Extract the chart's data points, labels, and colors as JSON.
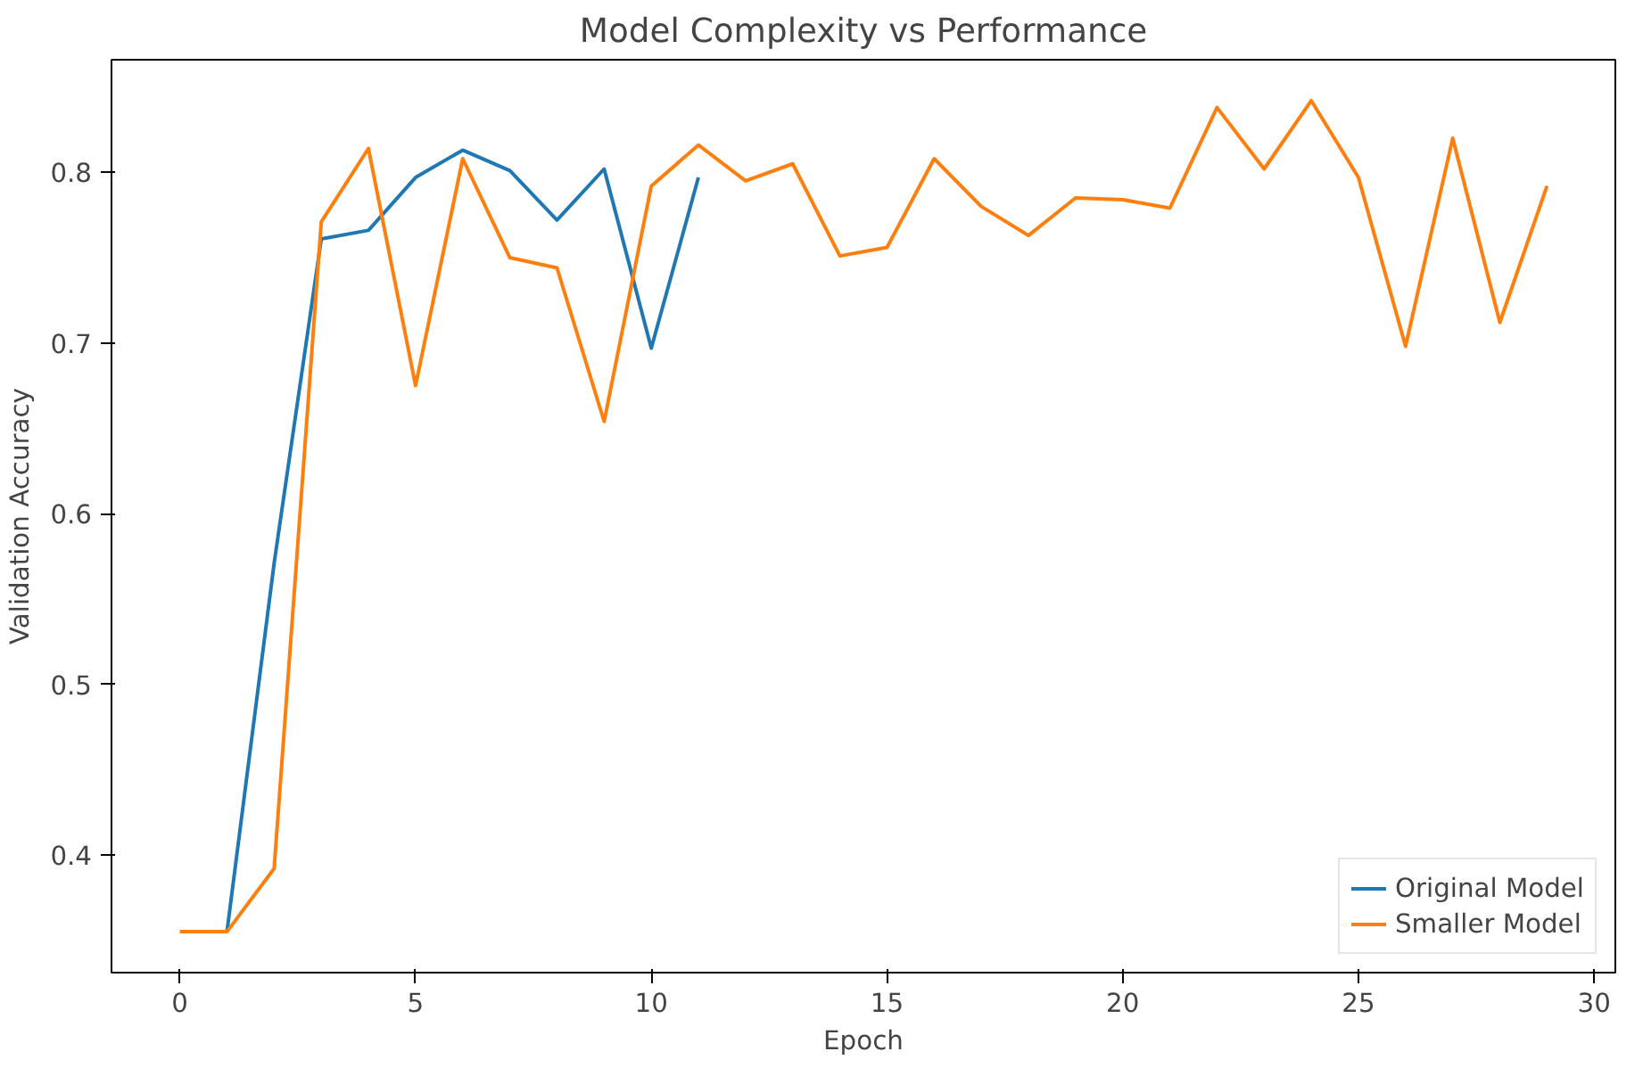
{
  "chart_data": {
    "type": "line",
    "title": "Model Complexity vs Performance",
    "xlabel": "Epoch",
    "ylabel": "Validation Accuracy",
    "xlim": [
      -1.45,
      30.45
    ],
    "ylim": [
      0.331,
      0.866
    ],
    "xticks": [
      0,
      5,
      10,
      15,
      20,
      25,
      30
    ],
    "yticks": [
      0.4,
      0.5,
      0.6,
      0.7,
      0.8
    ],
    "grid": false,
    "legend": "bottom right",
    "marker": "none",
    "line_style": "solid",
    "series": [
      {
        "name": "Original Model",
        "color": "#1f77b4",
        "x": [
          1,
          2,
          3,
          4,
          5,
          6,
          7,
          8,
          9,
          10,
          11
        ],
        "values": [
          0.355,
          0.571,
          0.761,
          0.766,
          0.797,
          0.813,
          0.801,
          0.772,
          0.802,
          0.697,
          0.797
        ]
      },
      {
        "name": "Smaller Model",
        "color": "#ff7f0e",
        "x": [
          0,
          1,
          2,
          3,
          4,
          5,
          6,
          7,
          8,
          9,
          10,
          11,
          12,
          13,
          14,
          15,
          16,
          17,
          18,
          19,
          20,
          21,
          22,
          23,
          24,
          25,
          26,
          27,
          28,
          29
        ],
        "values": [
          0.355,
          0.355,
          0.392,
          0.771,
          0.814,
          0.675,
          0.808,
          0.75,
          0.744,
          0.654,
          0.792,
          0.816,
          0.795,
          0.805,
          0.751,
          0.756,
          0.808,
          0.78,
          0.763,
          0.785,
          0.784,
          0.779,
          0.838,
          0.802,
          0.842,
          0.797,
          0.698,
          0.82,
          0.712,
          0.792
        ]
      }
    ]
  }
}
